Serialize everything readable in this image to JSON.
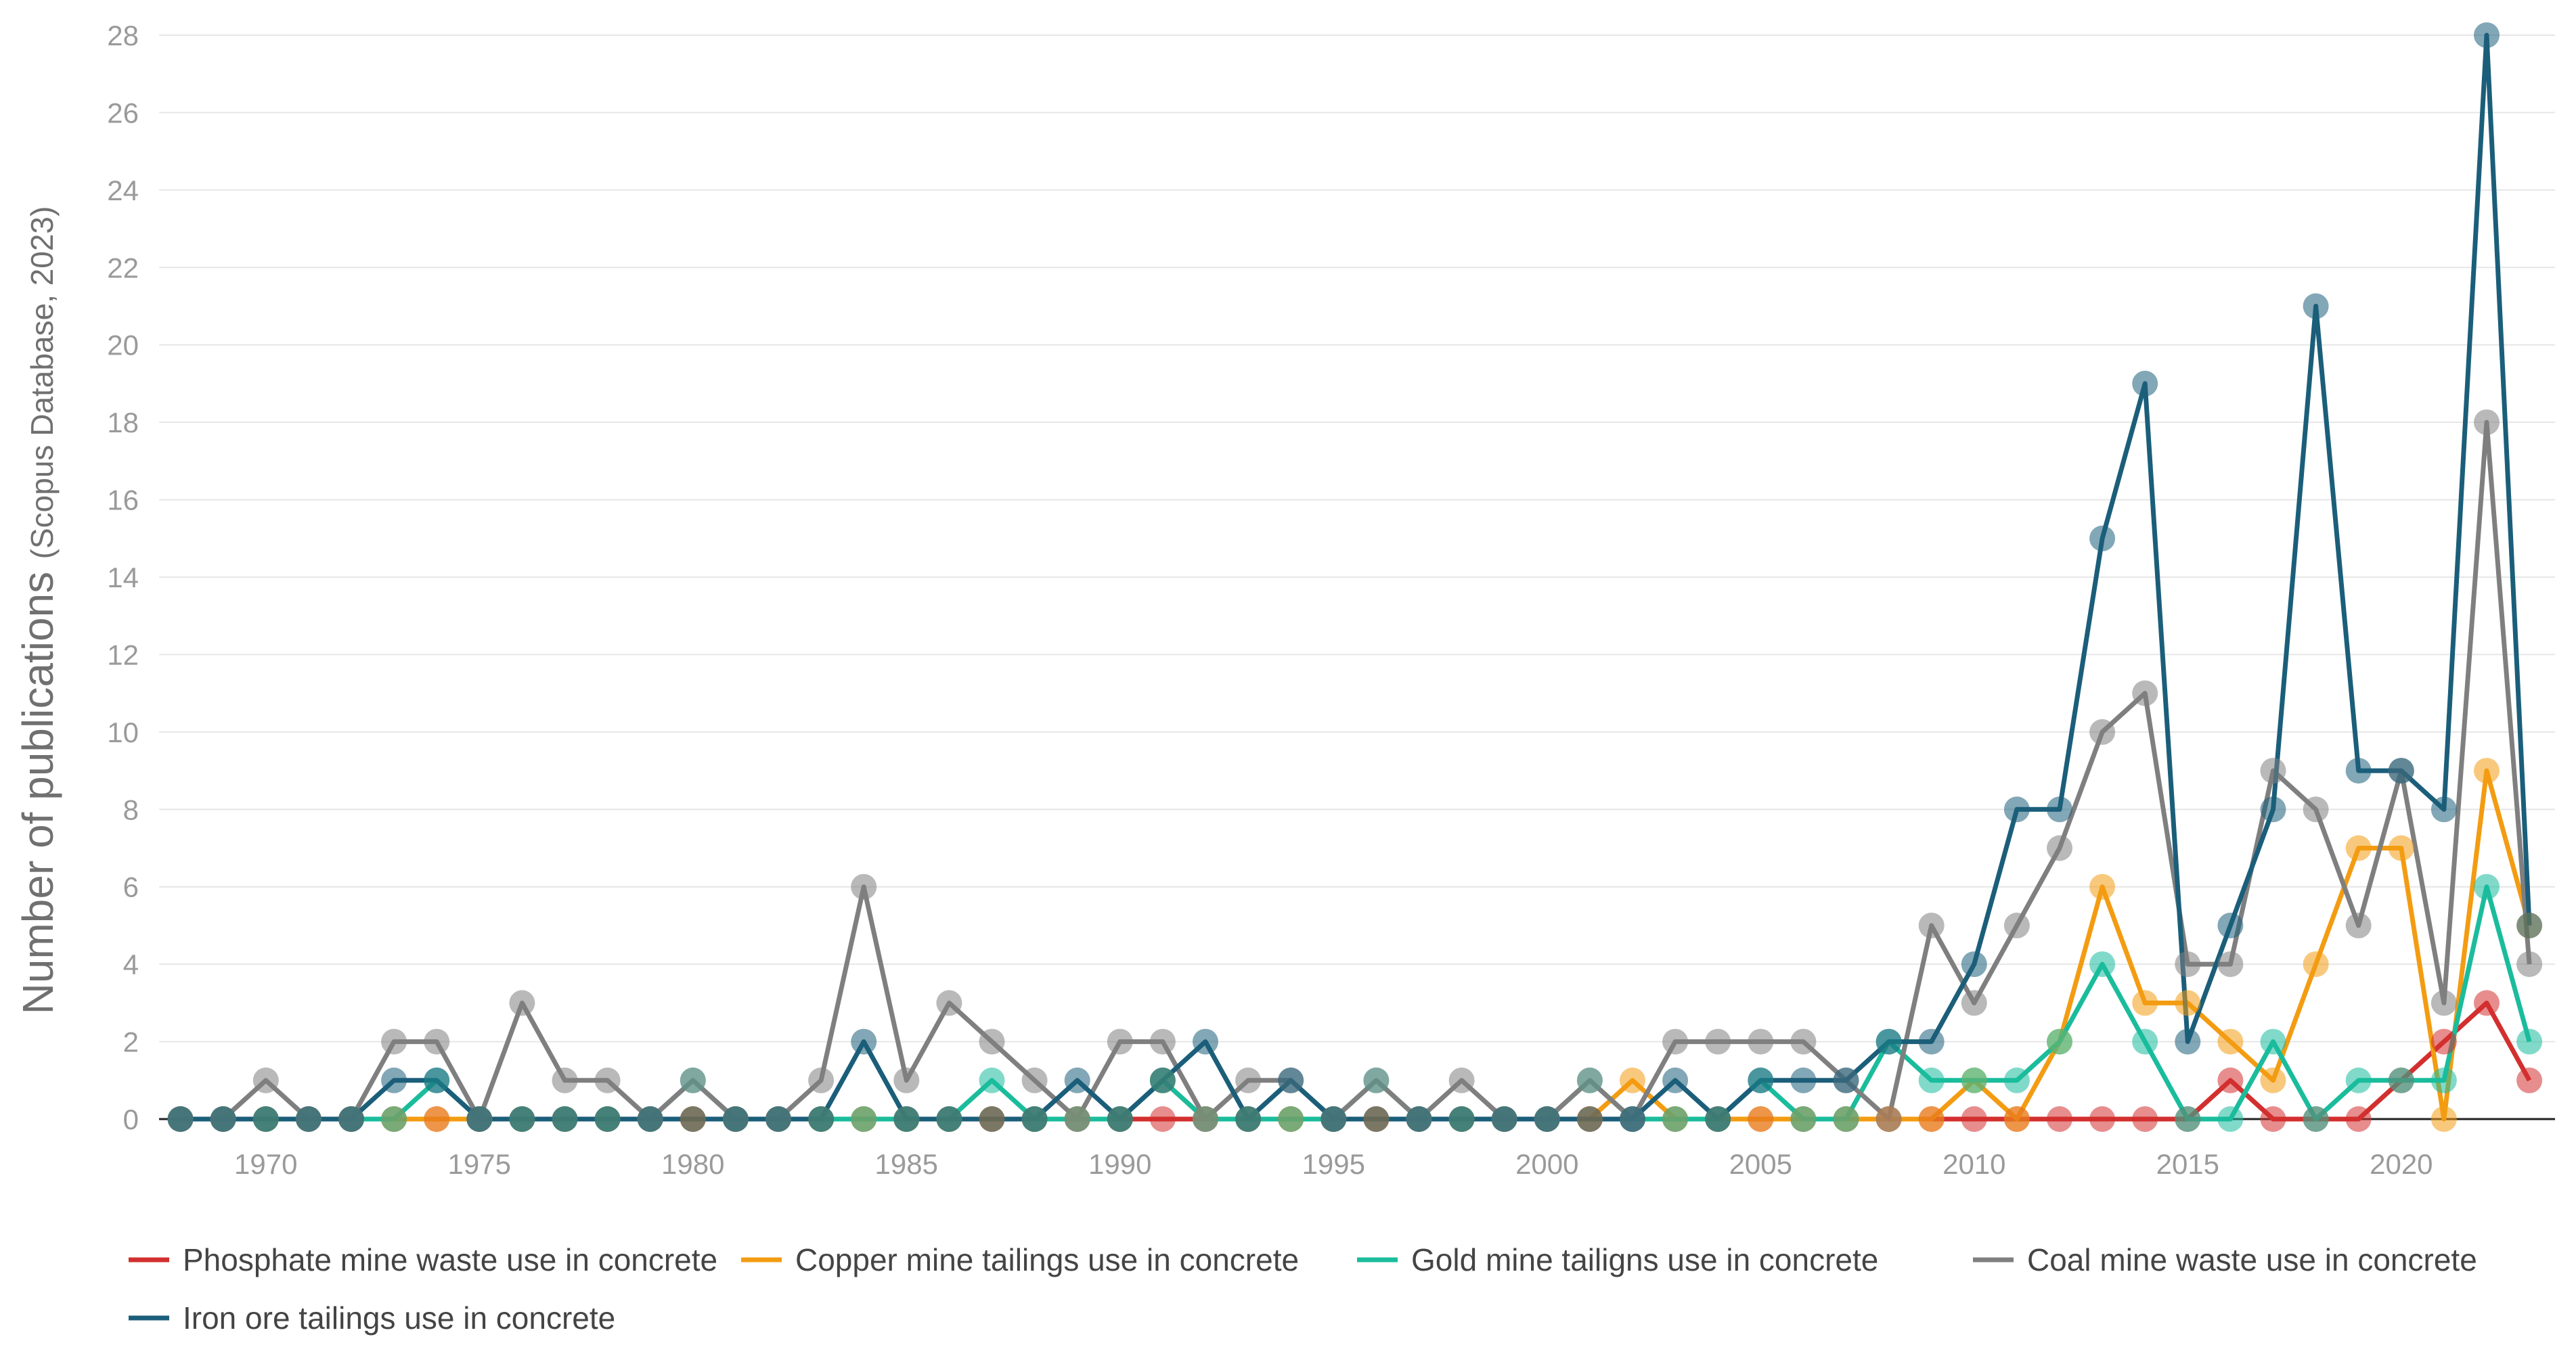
{
  "chart_data": {
    "type": "line",
    "ylabel_main": "Number of publications",
    "ylabel_sub": "(Scopus Database, 2023)",
    "xlabel": "",
    "xlim": [
      1967.5,
      1923.6
    ],
    "ylim": [
      0,
      28
    ],
    "x_ticks": [
      1970,
      1975,
      1980,
      1985,
      1990,
      1995,
      2000,
      2005,
      2010,
      2015,
      2020
    ],
    "y_ticks": [
      0,
      2,
      4,
      6,
      8,
      10,
      12,
      14,
      16,
      18,
      20,
      22,
      24,
      26,
      28
    ],
    "grid": "horizontal",
    "legend_position": "bottom",
    "x": [
      1968,
      1969,
      1970,
      1971,
      1972,
      1973,
      1974,
      1975,
      1976,
      1977,
      1978,
      1979,
      1980,
      1981,
      1982,
      1983,
      1984,
      1985,
      1986,
      1987,
      1988,
      1989,
      1990,
      1991,
      1992,
      1993,
      1994,
      1995,
      1996,
      1997,
      1998,
      1999,
      2000,
      2001,
      2002,
      2003,
      2004,
      2005,
      2006,
      2007,
      2008,
      2009,
      2010,
      2011,
      2012,
      2013,
      2014,
      2015,
      2016,
      2017,
      2018,
      2019,
      2020,
      2021,
      2022,
      2023
    ],
    "series": [
      {
        "name": "Phosphate mine waste use in concrete",
        "color": "#d32f2f",
        "values": [
          0,
          0,
          0,
          0,
          0,
          0,
          0,
          0,
          0,
          0,
          0,
          0,
          0,
          0,
          0,
          0,
          0,
          0,
          0,
          0,
          0,
          0,
          0,
          0,
          0,
          0,
          0,
          0,
          0,
          0,
          0,
          0,
          0,
          0,
          0,
          0,
          0,
          0,
          0,
          0,
          0,
          0,
          0,
          0,
          0,
          0,
          0,
          0,
          1,
          0,
          0,
          0,
          1,
          2,
          3,
          1
        ]
      },
      {
        "name": "Copper mine tailings use in concrete",
        "color": "#f39c12",
        "values": [
          0,
          0,
          0,
          0,
          0,
          0,
          0,
          0,
          0,
          0,
          0,
          0,
          0,
          0,
          0,
          0,
          0,
          0,
          0,
          0,
          0,
          0,
          0,
          1,
          0,
          0,
          0,
          0,
          0,
          0,
          0,
          0,
          0,
          0,
          1,
          0,
          0,
          0,
          0,
          0,
          0,
          0,
          1,
          0,
          2,
          6,
          3,
          3,
          2,
          1,
          4,
          7,
          7,
          0,
          9,
          5
        ]
      },
      {
        "name": "Gold mine tailigns use in concrete",
        "color": "#1abc9c",
        "values": [
          0,
          0,
          0,
          0,
          0,
          0,
          1,
          0,
          0,
          0,
          0,
          0,
          1,
          0,
          0,
          0,
          0,
          0,
          0,
          1,
          0,
          0,
          0,
          1,
          0,
          0,
          0,
          0,
          1,
          0,
          0,
          0,
          0,
          1,
          0,
          0,
          0,
          1,
          0,
          0,
          2,
          1,
          1,
          1,
          2,
          4,
          2,
          0,
          0,
          2,
          0,
          1,
          1,
          1,
          6,
          2
        ]
      },
      {
        "name": "Coal mine waste use in concrete",
        "color": "#7f7f7f",
        "values": [
          0,
          0,
          1,
          0,
          0,
          2,
          2,
          0,
          3,
          1,
          1,
          0,
          1,
          0,
          0,
          1,
          6,
          1,
          3,
          2,
          1,
          0,
          2,
          2,
          0,
          1,
          1,
          0,
          1,
          0,
          1,
          0,
          0,
          1,
          0,
          2,
          2,
          2,
          2,
          1,
          0,
          5,
          3,
          5,
          7,
          10,
          11,
          4,
          4,
          9,
          8,
          5,
          9,
          3,
          18,
          4
        ]
      },
      {
        "name": "Iron ore tailings use in concrete",
        "color": "#1b5e7a",
        "values": [
          0,
          0,
          0,
          0,
          0,
          1,
          1,
          0,
          0,
          0,
          0,
          0,
          0,
          0,
          0,
          0,
          2,
          0,
          0,
          0,
          0,
          1,
          0,
          1,
          2,
          0,
          1,
          0,
          0,
          0,
          0,
          0,
          0,
          0,
          0,
          1,
          0,
          1,
          1,
          1,
          2,
          2,
          4,
          8,
          8,
          15,
          19,
          2,
          5,
          8,
          21,
          9,
          9,
          8,
          28,
          5
        ]
      }
    ]
  }
}
